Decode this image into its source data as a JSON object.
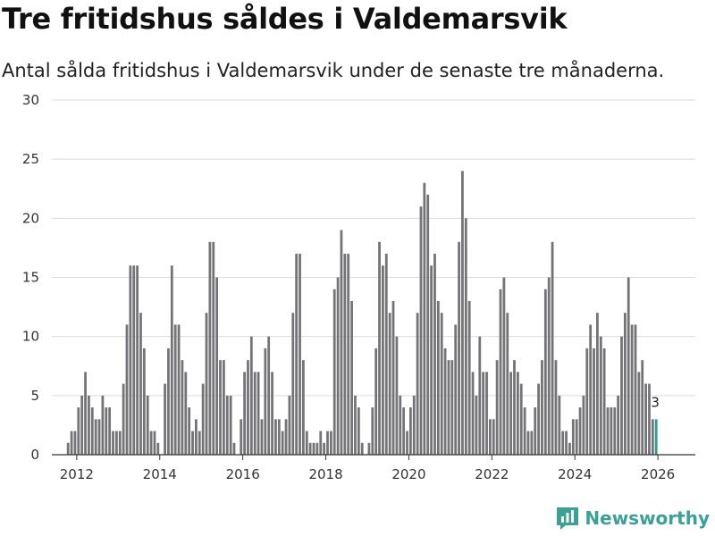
{
  "title": "Tre fritidshus såldes i Valdemarsvik",
  "subtitle": "Antal sålda fritidshus i Valdemarsvik under de senaste tre månaderna.",
  "brand": {
    "name": "Newsworthy",
    "icon": "newsworthy-logo-icon",
    "color": "#3aa197"
  },
  "colors": {
    "bar": "#737378",
    "highlight": "#2a9d8f",
    "grid": "#dcdcdc",
    "axis": "#333333"
  },
  "chart_data": {
    "type": "bar",
    "start": "2011-10",
    "ylim": [
      0,
      30
    ],
    "yticks": [
      0,
      5,
      10,
      15,
      20,
      25,
      30
    ],
    "xlim": [
      2011.4,
      2026.6
    ],
    "xticks": [
      2012,
      2014,
      2016,
      2018,
      2020,
      2022,
      2024,
      2026
    ],
    "grid": true,
    "legend": "none",
    "highlight_last": true,
    "last_label": "3",
    "values": [
      1,
      2,
      2,
      4,
      5,
      7,
      5,
      4,
      3,
      3,
      5,
      4,
      4,
      2,
      2,
      2,
      6,
      11,
      16,
      16,
      16,
      12,
      9,
      5,
      2,
      2,
      1,
      0,
      6,
      9,
      16,
      11,
      11,
      8,
      7,
      4,
      2,
      3,
      2,
      6,
      12,
      18,
      18,
      15,
      8,
      8,
      5,
      5,
      1,
      0,
      3,
      7,
      8,
      10,
      7,
      7,
      3,
      9,
      10,
      7,
      3,
      3,
      2,
      3,
      5,
      12,
      17,
      17,
      8,
      2,
      1,
      1,
      1,
      2,
      1,
      2,
      2,
      14,
      15,
      19,
      17,
      17,
      13,
      5,
      4,
      1,
      0,
      1,
      4,
      9,
      18,
      16,
      17,
      12,
      13,
      10,
      5,
      4,
      2,
      4,
      5,
      12,
      21,
      23,
      22,
      16,
      17,
      13,
      12,
      9,
      8,
      8,
      11,
      18,
      24,
      20,
      13,
      7,
      5,
      10,
      7,
      7,
      3,
      3,
      8,
      14,
      15,
      12,
      7,
      8,
      7,
      6,
      4,
      2,
      2,
      4,
      6,
      8,
      14,
      15,
      18,
      8,
      5,
      2,
      2,
      1,
      3,
      3,
      4,
      5,
      9,
      11,
      9,
      12,
      10,
      9,
      4,
      4,
      4,
      5,
      10,
      12,
      15,
      11,
      11,
      7,
      8,
      6,
      6,
      3,
      3
    ]
  }
}
